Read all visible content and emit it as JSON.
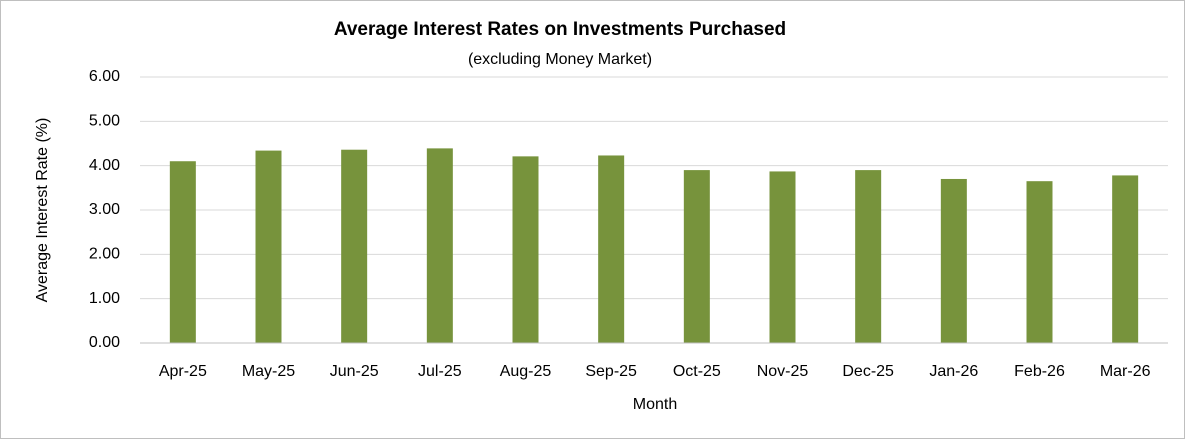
{
  "chart_data": {
    "type": "bar",
    "title": "Average Interest Rates on Investments Purchased",
    "subtitle": "(excluding Money Market)",
    "x_label": "Month",
    "y_label": "Average Interest Rate (%)",
    "categories": [
      "Apr-25",
      "May-25",
      "Jun-25",
      "Jul-25",
      "Aug-25",
      "Sep-25",
      "Oct-25",
      "Nov-25",
      "Dec-25",
      "Jan-26",
      "Feb-26",
      "Mar-26"
    ],
    "values": [
      4.1,
      4.34,
      4.36,
      4.39,
      4.21,
      4.23,
      3.9,
      3.87,
      3.9,
      3.7,
      3.65,
      3.78
    ],
    "color": "#77933c",
    "ylim": [
      0,
      6
    ],
    "yticks": [
      {
        "value": 0,
        "label": "0.00"
      },
      {
        "value": 1,
        "label": "1.00"
      },
      {
        "value": 2,
        "label": "2.00"
      },
      {
        "value": 3,
        "label": "3.00"
      },
      {
        "value": 4,
        "label": "4.00"
      },
      {
        "value": 5,
        "label": "5.00"
      },
      {
        "value": 6,
        "label": "6.00"
      }
    ],
    "grid": true
  }
}
